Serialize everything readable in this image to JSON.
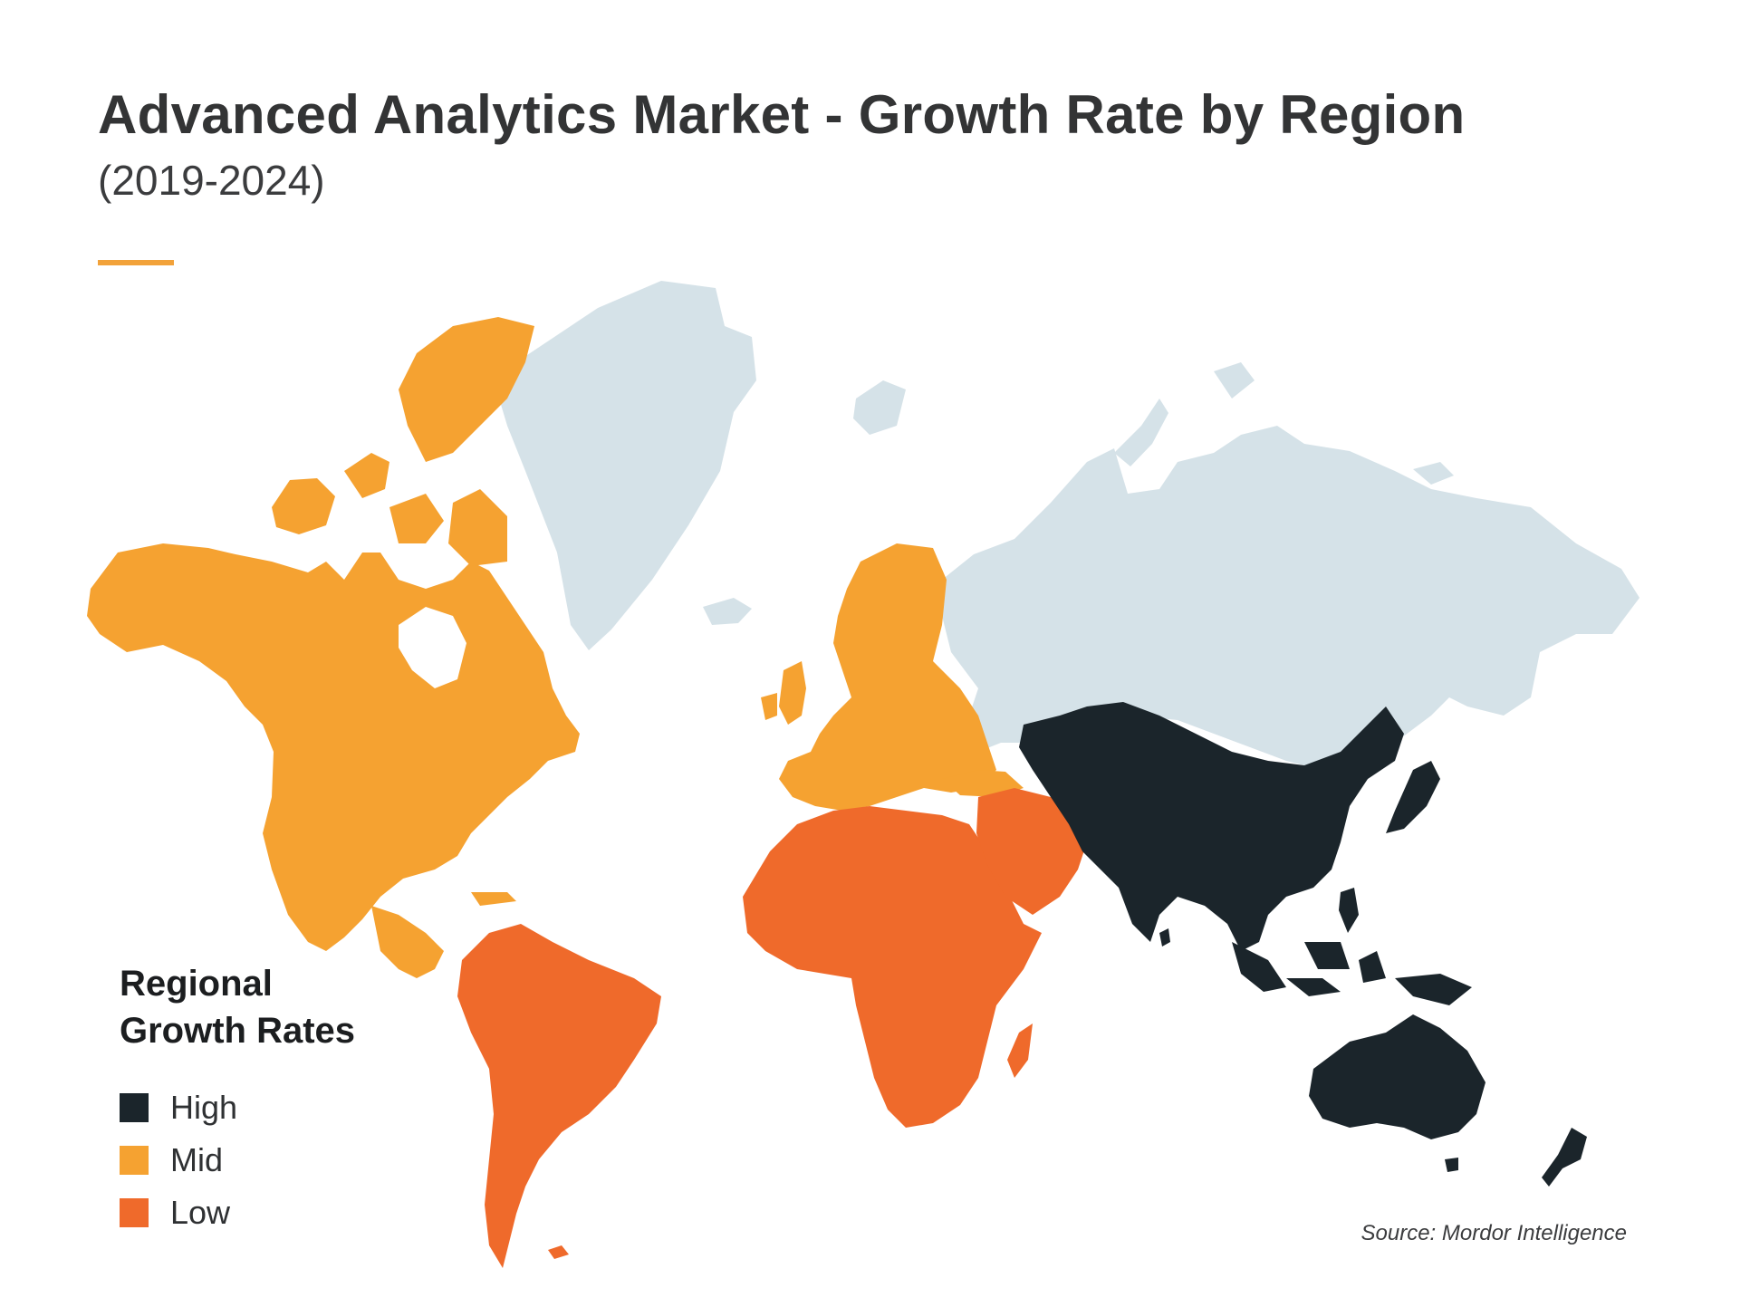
{
  "title": "Advanced Analytics Market - Growth Rate by Region",
  "subtitle": "(2019-2024)",
  "legend": {
    "title_line1": "Regional",
    "title_line2": "Growth Rates",
    "items": [
      {
        "label": "High",
        "color": "#1b252b"
      },
      {
        "label": "Mid",
        "color": "#f5a231"
      },
      {
        "label": "Low",
        "color": "#ef6a2b"
      }
    ]
  },
  "colors": {
    "high": "#1b252b",
    "mid": "#f5a231",
    "low": "#ef6a2b",
    "no_data": "#d5e2e8",
    "accent": "#f2a23a"
  },
  "regions": [
    {
      "name": "North America",
      "category": "mid"
    },
    {
      "name": "Europe",
      "category": "mid"
    },
    {
      "name": "South America",
      "category": "low"
    },
    {
      "name": "Middle East and Africa",
      "category": "low"
    },
    {
      "name": "Asia-Pacific",
      "category": "high"
    },
    {
      "name": "Greenland",
      "category": "no_data"
    },
    {
      "name": "Russia",
      "category": "no_data"
    }
  ],
  "source": "Source: Mordor Intelligence"
}
